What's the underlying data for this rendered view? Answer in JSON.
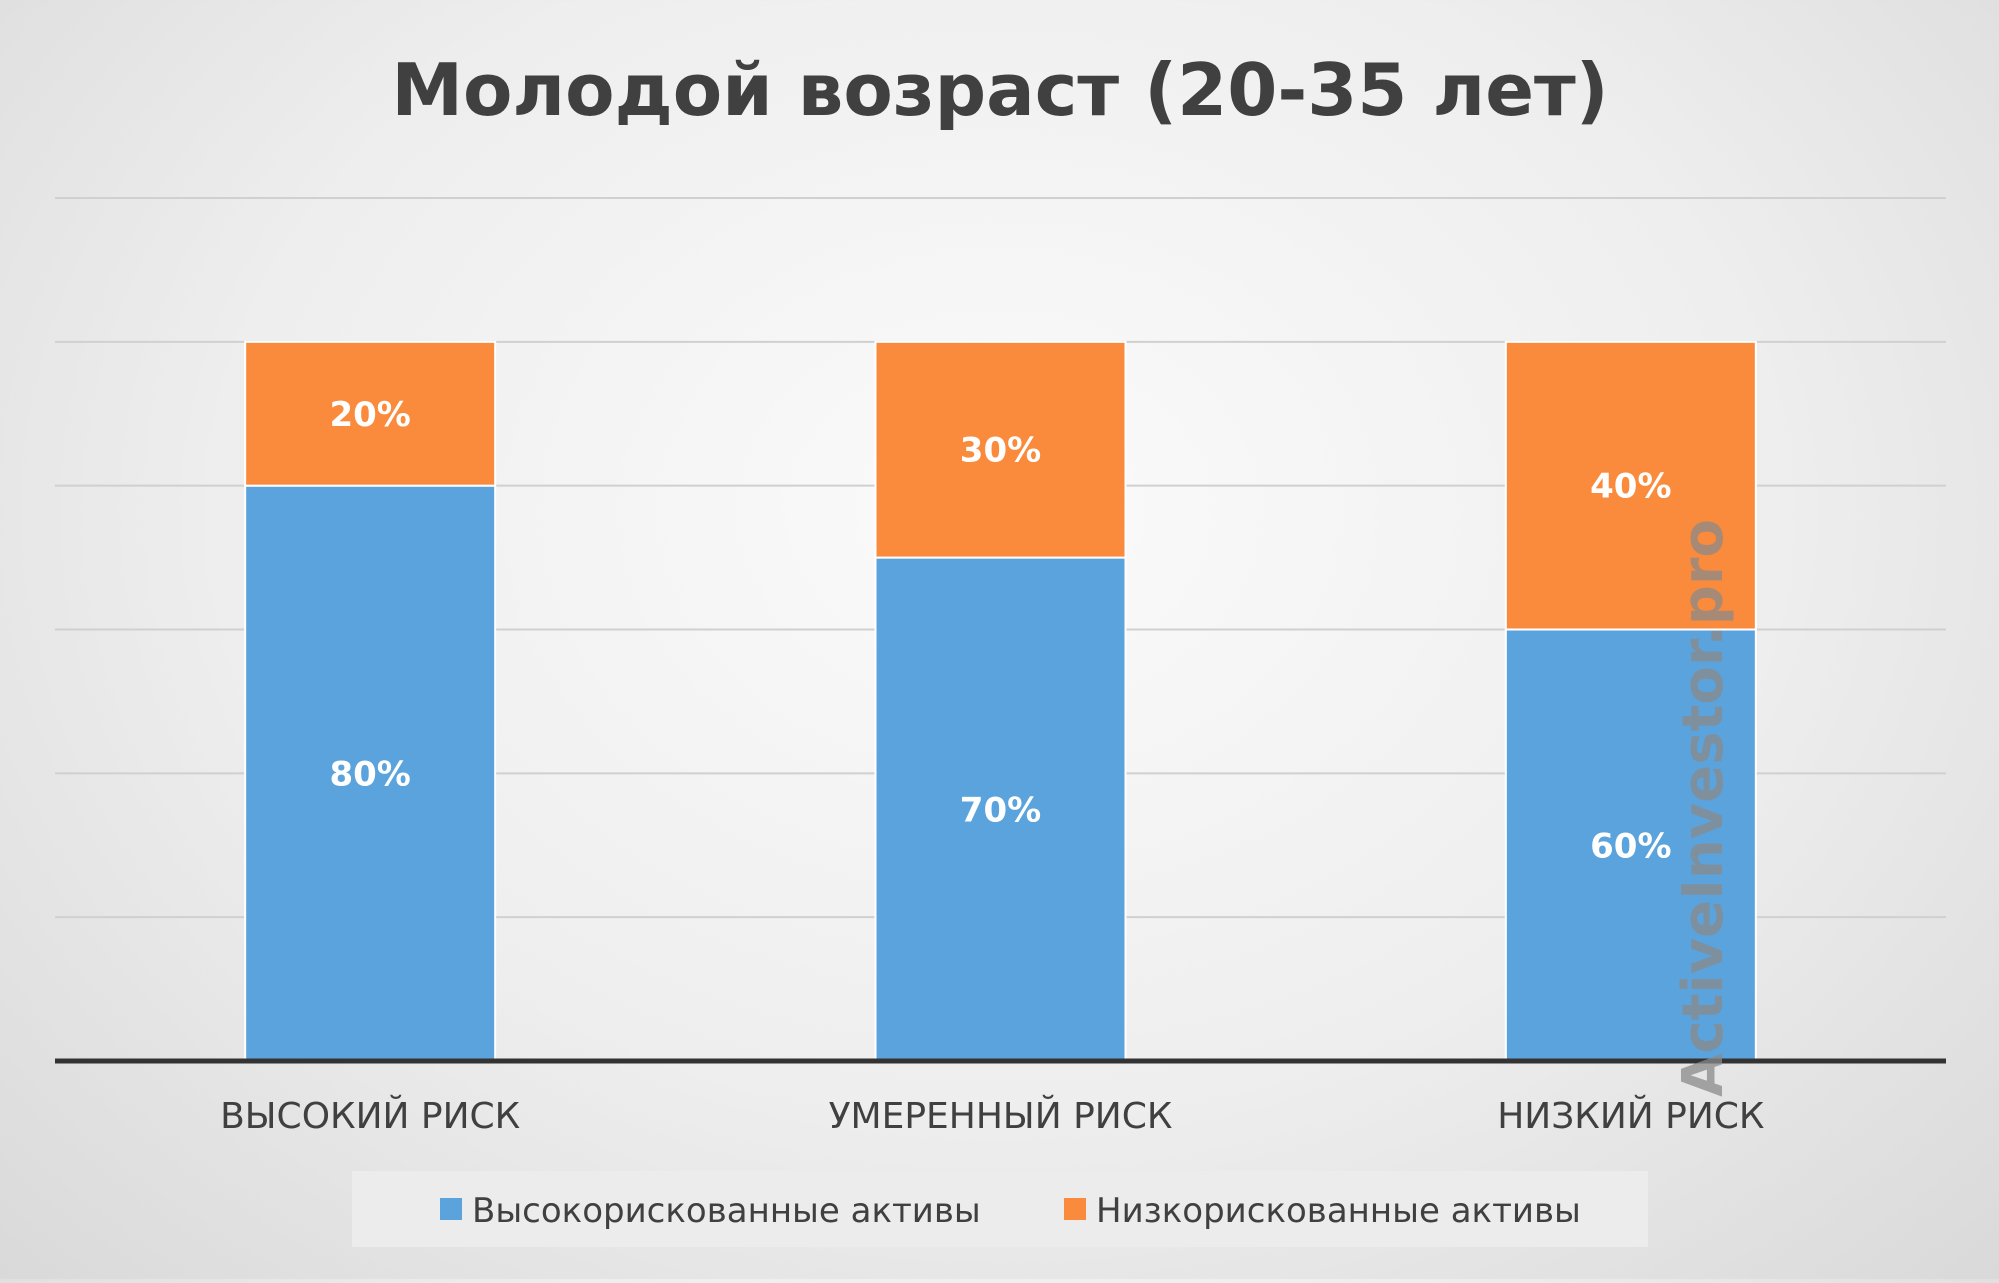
{
  "chart_data": {
    "type": "bar",
    "stacked": true,
    "title": "Молодой возраст (20-35 лет)",
    "categories": [
      "ВЫСОКИЙ РИСК",
      "УМЕРЕННЫЙ РИСК",
      "НИЗКИЙ РИСК"
    ],
    "series": [
      {
        "name": "Высокорискованные активы",
        "values": [
          80,
          70,
          60
        ],
        "labels": [
          "80%",
          "70%",
          "60%"
        ],
        "color": "#5ba3dc"
      },
      {
        "name": "Низкорискованные активы",
        "values": [
          20,
          30,
          40
        ],
        "labels": [
          "20%",
          "30%",
          "40%"
        ],
        "color": "#fb8b3c"
      }
    ],
    "ylim": [
      0,
      120
    ],
    "grid": true,
    "legend_position": "bottom",
    "watermark": "ActiveInvestor.pro"
  }
}
